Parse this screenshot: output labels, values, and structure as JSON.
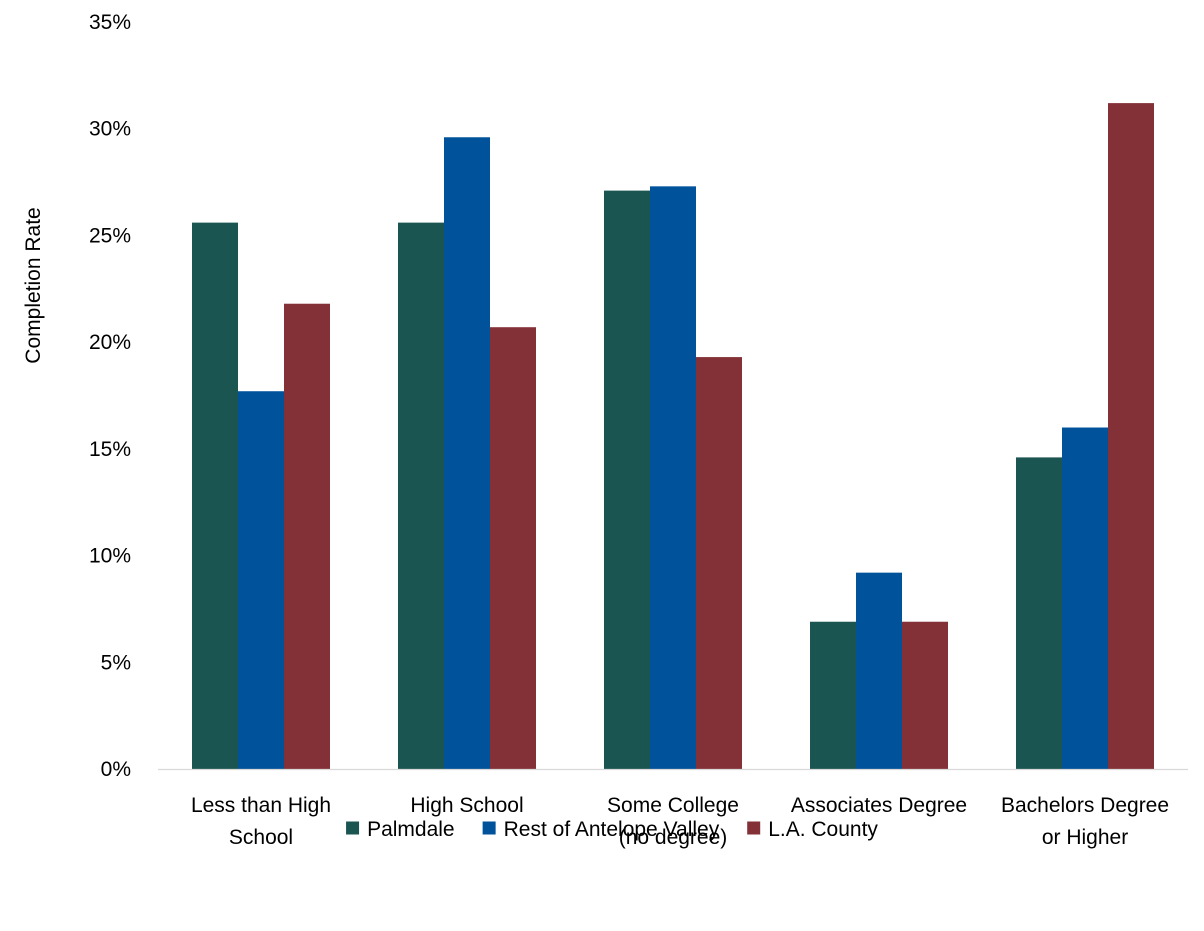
{
  "chart_data": {
    "type": "bar",
    "title": "",
    "xlabel": "",
    "ylabel": "Completion Rate",
    "ylim": [
      0,
      35
    ],
    "yticks": [
      0,
      5,
      10,
      15,
      20,
      25,
      30,
      35
    ],
    "ytick_labels": [
      "0%",
      "5%",
      "10%",
      "15%",
      "20%",
      "25%",
      "30%",
      "35%"
    ],
    "categories": [
      [
        "Less than High",
        "School"
      ],
      [
        "High School"
      ],
      [
        "Some College",
        "(no degree)"
      ],
      [
        "Associates Degree"
      ],
      [
        "Bachelors Degree",
        "or Higher"
      ]
    ],
    "series": [
      {
        "name": "Palmdale",
        "color": "#1b5551",
        "values": [
          25.6,
          25.6,
          27.1,
          6.9,
          14.6
        ]
      },
      {
        "name": "Rest of Antelope Valley",
        "color": "#00529b",
        "values": [
          17.7,
          29.6,
          27.3,
          9.2,
          16.0
        ]
      },
      {
        "name": "L.A. County",
        "color": "#833136",
        "values": [
          21.8,
          20.7,
          19.3,
          6.9,
          31.2
        ]
      }
    ],
    "legend": {
      "position": "bottom"
    },
    "grid": false
  }
}
